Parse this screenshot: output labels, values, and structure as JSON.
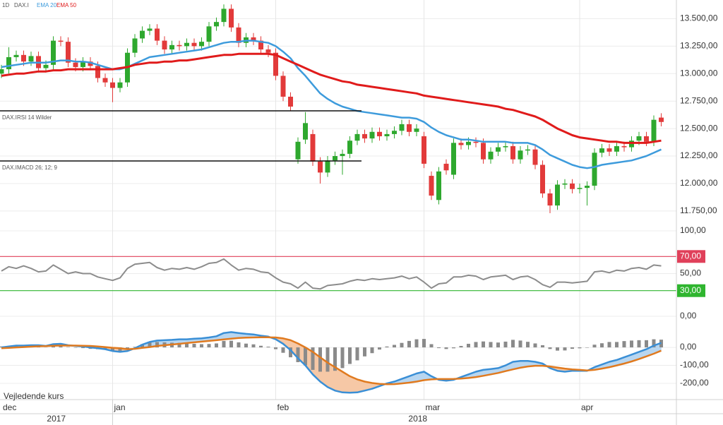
{
  "chart_data": [
    {
      "type": "candlestick",
      "interval": "1D",
      "symbol": "DAX.I",
      "up_color": "#2ea82e",
      "down_color": "#e23a3a",
      "ylim": [
        11550,
        13670
      ],
      "yticks": [
        {
          "value": 13500,
          "label": "13.500,00"
        },
        {
          "value": 13250,
          "label": "13.250,00"
        },
        {
          "value": 13000,
          "label": "13.000,00"
        },
        {
          "value": 12750,
          "label": "12.750,00"
        },
        {
          "value": 12500,
          "label": "12.500,00"
        },
        {
          "value": 12250,
          "label": "12.250,00"
        },
        {
          "value": 12000,
          "label": "12.000,00"
        },
        {
          "value": 11750,
          "label": "11.750,00"
        }
      ],
      "grid": true,
      "open": [
        13000,
        13040,
        13150,
        13170,
        13110,
        13160,
        13050,
        13080,
        13300,
        13290,
        13100,
        13060,
        13110,
        13070,
        12960,
        12920,
        12870,
        12920,
        13190,
        13320,
        13390,
        13410,
        13300,
        13220,
        13260,
        13250,
        13280,
        13250,
        13290,
        13430,
        13470,
        13590,
        13420,
        13280,
        13330,
        13300,
        13220,
        13190,
        12980,
        12790,
        12220,
        12400,
        12450,
        12200,
        12100,
        12210,
        12250,
        12270,
        12390,
        12450,
        12410,
        12470,
        12430,
        12450,
        12480,
        12540,
        12470,
        12430,
        12070,
        11850,
        12180,
        12080,
        12370,
        12350,
        12380,
        12370,
        12220,
        12290,
        12330,
        12340,
        12220,
        12300,
        12310,
        12170,
        11910,
        11800,
        11990,
        12000,
        11950,
        11960,
        11980,
        12280,
        12320,
        12290,
        12340,
        12330,
        12390,
        12430,
        12380,
        12600
      ],
      "high": [
        13080,
        13240,
        13210,
        13210,
        13200,
        13200,
        13120,
        13340,
        13340,
        13330,
        13140,
        13150,
        13150,
        13110,
        13000,
        12960,
        12960,
        13230,
        13360,
        13430,
        13450,
        13450,
        13340,
        13300,
        13300,
        13320,
        13320,
        13330,
        13470,
        13510,
        13630,
        13630,
        13460,
        13370,
        13370,
        13340,
        13260,
        13230,
        13020,
        12830,
        12420,
        12650,
        12490,
        12240,
        12250,
        12290,
        12310,
        12430,
        12490,
        12490,
        12510,
        12510,
        12490,
        12520,
        12580,
        12580,
        12540,
        12470,
        12110,
        12150,
        12220,
        12410,
        12410,
        12420,
        12420,
        12410,
        12330,
        12370,
        12380,
        12380,
        12340,
        12350,
        12350,
        12210,
        11950,
        12030,
        12040,
        12040,
        12000,
        12020,
        12320,
        12360,
        12360,
        12380,
        12380,
        12430,
        12470,
        12470,
        12620,
        12640
      ],
      "low": [
        12960,
        13000,
        13110,
        13070,
        13070,
        13010,
        13010,
        13040,
        13250,
        13060,
        13020,
        13020,
        13030,
        12920,
        12880,
        12740,
        12830,
        12880,
        13150,
        13280,
        13350,
        13260,
        13180,
        13180,
        13210,
        13210,
        13210,
        13210,
        13250,
        13390,
        13430,
        13380,
        13240,
        13240,
        13260,
        13180,
        13150,
        12940,
        12750,
        12660,
        12180,
        12360,
        12160,
        12000,
        12060,
        12170,
        12080,
        12230,
        12350,
        12370,
        12370,
        12390,
        12390,
        12410,
        12440,
        12430,
        12430,
        12140,
        11850,
        11810,
        12080,
        12040,
        12310,
        12310,
        12330,
        12180,
        12180,
        12250,
        12290,
        12180,
        12180,
        12260,
        12130,
        11870,
        11730,
        11760,
        11950,
        11910,
        11910,
        11800,
        11940,
        12240,
        12250,
        12250,
        12290,
        12290,
        12350,
        12340,
        12340,
        12520
      ],
      "close": [
        13040,
        13150,
        13170,
        13110,
        13160,
        13050,
        13080,
        13300,
        13290,
        13100,
        13060,
        13110,
        13070,
        12960,
        12920,
        12870,
        12920,
        13190,
        13320,
        13390,
        13410,
        13300,
        13220,
        13260,
        13250,
        13280,
        13250,
        13290,
        13430,
        13470,
        13590,
        13420,
        13280,
        13330,
        13300,
        13220,
        13190,
        12980,
        12790,
        12700,
        12380,
        12550,
        12200,
        12100,
        12210,
        12250,
        12270,
        12390,
        12450,
        12410,
        12470,
        12430,
        12450,
        12480,
        12540,
        12470,
        12500,
        12180,
        11890,
        12110,
        12120,
        12370,
        12350,
        12380,
        12370,
        12220,
        12290,
        12330,
        12340,
        12220,
        12300,
        12310,
        12170,
        11910,
        11800,
        11990,
        12000,
        11950,
        11960,
        11980,
        12280,
        12320,
        12290,
        12340,
        12330,
        12390,
        12430,
        12380,
        12580,
        12560
      ],
      "series": [
        {
          "name": "EMA 20",
          "color": "#3d9bdc",
          "values": [
            13060,
            13070,
            13080,
            13090,
            13100,
            13100,
            13100,
            13110,
            13120,
            13120,
            13110,
            13110,
            13100,
            13080,
            13060,
            13040,
            13040,
            13060,
            13090,
            13120,
            13150,
            13160,
            13170,
            13180,
            13190,
            13200,
            13210,
            13220,
            13240,
            13260,
            13280,
            13290,
            13290,
            13300,
            13300,
            13290,
            13280,
            13250,
            13200,
            13140,
            13050,
            12980,
            12900,
            12820,
            12770,
            12730,
            12700,
            12680,
            12660,
            12650,
            12640,
            12630,
            12620,
            12610,
            12600,
            12600,
            12590,
            12560,
            12510,
            12470,
            12440,
            12420,
            12400,
            12400,
            12390,
            12380,
            12380,
            12380,
            12380,
            12370,
            12370,
            12370,
            12350,
            12310,
            12260,
            12230,
            12200,
            12170,
            12150,
            12140,
            12150,
            12170,
            12180,
            12190,
            12200,
            12210,
            12230,
            12250,
            12280,
            12310
          ]
        },
        {
          "name": "EMA 50",
          "color": "#e01b1b",
          "values": [
            12980,
            12990,
            13000,
            13000,
            13010,
            13020,
            13020,
            13030,
            13030,
            13040,
            13040,
            13040,
            13040,
            13040,
            13040,
            13040,
            13050,
            13060,
            13080,
            13090,
            13100,
            13100,
            13110,
            13110,
            13120,
            13120,
            13130,
            13140,
            13150,
            13160,
            13170,
            13170,
            13180,
            13180,
            13180,
            13180,
            13180,
            13170,
            13140,
            13110,
            13080,
            13050,
            13020,
            12990,
            12970,
            12950,
            12930,
            12920,
            12900,
            12890,
            12880,
            12870,
            12860,
            12850,
            12840,
            12830,
            12820,
            12800,
            12790,
            12780,
            12770,
            12760,
            12750,
            12740,
            12730,
            12720,
            12710,
            12700,
            12680,
            12670,
            12650,
            12630,
            12610,
            12580,
            12540,
            12500,
            12470,
            12440,
            12420,
            12410,
            12400,
            12390,
            12380,
            12380,
            12370,
            12370,
            12370,
            12370,
            12380,
            12390
          ]
        }
      ]
    },
    {
      "type": "line",
      "symbol": "DAX.I",
      "label": "RSI 14 Wilder",
      "color": "#8c8c8c",
      "ylim": [
        0,
        100
      ],
      "yticks": [
        {
          "value": 100,
          "label": "100,00"
        },
        {
          "value": 50,
          "label": "50,00"
        },
        {
          "value": 0,
          "label": "0,00"
        }
      ],
      "levels": [
        {
          "value": 70,
          "label": "70,00",
          "color": "#e0405a"
        },
        {
          "value": 30,
          "label": "30,00",
          "color": "#2fb52f"
        }
      ],
      "values": [
        53,
        58,
        56,
        59,
        56,
        52,
        53,
        60,
        55,
        50,
        52,
        50,
        50,
        46,
        44,
        42,
        45,
        56,
        61,
        62,
        63,
        57,
        54,
        56,
        55,
        57,
        55,
        58,
        62,
        63,
        67,
        60,
        54,
        56,
        55,
        52,
        51,
        45,
        40,
        38,
        33,
        40,
        33,
        32,
        36,
        37,
        38,
        41,
        43,
        42,
        44,
        43,
        44,
        45,
        47,
        44,
        46,
        40,
        33,
        38,
        39,
        46,
        46,
        48,
        47,
        43,
        46,
        47,
        48,
        43,
        46,
        47,
        43,
        37,
        34,
        40,
        40,
        39,
        40,
        41,
        52,
        53,
        51,
        54,
        53,
        56,
        57,
        55,
        60,
        59
      ]
    },
    {
      "type": "macd",
      "symbol": "DAX.I",
      "label": "MACD 26; 12; 9",
      "annotation": "Vejledende kurs",
      "categories": [
        "dec",
        null,
        null,
        null,
        null,
        null,
        null,
        null,
        null,
        null,
        null,
        null,
        null,
        null,
        null,
        "jan",
        null,
        null,
        null,
        null,
        null,
        null,
        null,
        null,
        null,
        null,
        null,
        null,
        null,
        null,
        null,
        null,
        null,
        null,
        null,
        null,
        null,
        "feb",
        null,
        null,
        null,
        null,
        null,
        null,
        null,
        null,
        null,
        null,
        null,
        null,
        null,
        null,
        null,
        null,
        null,
        null,
        null,
        "mar",
        null,
        null,
        null,
        null,
        null,
        null,
        null,
        null,
        null,
        null,
        null,
        null,
        null,
        null,
        null,
        null,
        null,
        null,
        null,
        null,
        "apr",
        null,
        null,
        null,
        null,
        null,
        null,
        null,
        null,
        null,
        null,
        null
      ],
      "years": [
        "2017",
        "2018"
      ],
      "ylim": [
        -290,
        165
      ],
      "yticks": [
        {
          "value": 0,
          "label": "0,00"
        },
        {
          "value": -100,
          "label": "-100,00"
        },
        {
          "value": -200,
          "label": "-200,00"
        }
      ],
      "histogram_color": "#8a8a8a",
      "series": [
        {
          "name": "MACD",
          "color": "#3a8fd6",
          "fill": "#b8d6f0",
          "values": [
            0,
            5,
            10,
            10,
            12,
            12,
            8,
            18,
            20,
            12,
            8,
            5,
            0,
            -5,
            -10,
            -20,
            -25,
            -20,
            -5,
            15,
            30,
            38,
            40,
            42,
            45,
            45,
            48,
            50,
            55,
            62,
            80,
            85,
            80,
            75,
            72,
            65,
            60,
            45,
            20,
            -15,
            -60,
            -100,
            -150,
            -190,
            -220,
            -240,
            -250,
            -252,
            -250,
            -240,
            -230,
            -215,
            -200,
            -190,
            -175,
            -160,
            -145,
            -135,
            -160,
            -180,
            -185,
            -180,
            -165,
            -150,
            -135,
            -125,
            -120,
            -115,
            -100,
            -80,
            -75,
            -75,
            -80,
            -90,
            -115,
            -130,
            -135,
            -130,
            -130,
            -130,
            -110,
            -95,
            -80,
            -70,
            -55,
            -40,
            -25,
            -10,
            10,
            25
          ]
        },
        {
          "name": "Signal",
          "color": "#e07a1f",
          "fill": "#f6c8a6",
          "values": [
            -5,
            -3,
            0,
            2,
            4,
            6,
            7,
            9,
            10,
            10,
            10,
            9,
            8,
            5,
            2,
            -2,
            -5,
            -10,
            -8,
            -3,
            2,
            8,
            12,
            16,
            20,
            24,
            28,
            32,
            36,
            40,
            44,
            48,
            52,
            54,
            55,
            56,
            56,
            55,
            50,
            40,
            22,
            0,
            -25,
            -55,
            -85,
            -110,
            -135,
            -160,
            -178,
            -190,
            -198,
            -203,
            -205,
            -204,
            -200,
            -196,
            -190,
            -182,
            -178,
            -176,
            -176,
            -175,
            -173,
            -170,
            -165,
            -158,
            -150,
            -142,
            -132,
            -122,
            -113,
            -106,
            -102,
            -102,
            -106,
            -112,
            -118,
            -122,
            -125,
            -128,
            -125,
            -118,
            -110,
            -100,
            -90,
            -78,
            -65,
            -50,
            -35,
            -18
          ]
        }
      ],
      "histogram": [
        5,
        8,
        10,
        8,
        8,
        6,
        1,
        9,
        10,
        2,
        -2,
        -4,
        -8,
        -10,
        -12,
        -18,
        -20,
        -10,
        3,
        18,
        28,
        30,
        28,
        26,
        25,
        21,
        20,
        18,
        19,
        22,
        36,
        37,
        28,
        21,
        17,
        9,
        4,
        -10,
        -30,
        -55,
        -82,
        -100,
        -125,
        -135,
        -135,
        -130,
        -115,
        -92,
        -72,
        -50,
        -32,
        -12,
        5,
        14,
        25,
        36,
        45,
        47,
        18,
        -4,
        -9,
        -5,
        8,
        20,
        30,
        33,
        30,
        27,
        32,
        42,
        38,
        31,
        22,
        12,
        -9,
        -18,
        -17,
        -8,
        -5,
        -2,
        15,
        23,
        30,
        30,
        35,
        38,
        40,
        40,
        45,
        43
      ]
    }
  ]
}
